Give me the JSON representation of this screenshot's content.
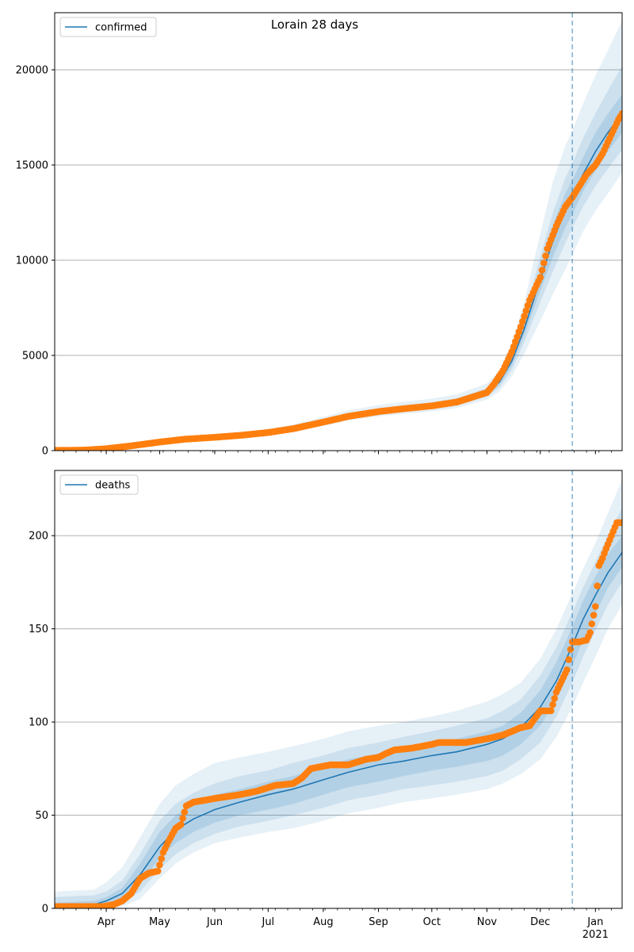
{
  "figure": {
    "title": "Lorain 28 days"
  },
  "colors": {
    "line": "#1f77b4",
    "points": "#ff7f0e",
    "band": "#1f77b4",
    "grid": "#b0b0b0"
  },
  "chart_data": [
    {
      "type": "line",
      "name": "confirmed-panel",
      "legend": "confirmed",
      "legend_position": "upper-left",
      "ylim": [
        0,
        23000
      ],
      "yticks": [
        0,
        5000,
        10000,
        15000,
        20000
      ],
      "grid": "y",
      "forecast_start": "2020-12-19",
      "series": [
        {
          "name": "confirmed",
          "style": "line",
          "x": [
            "2020-03-01",
            "2020-03-20",
            "2020-04-01",
            "2020-04-15",
            "2020-05-01",
            "2020-05-15",
            "2020-06-01",
            "2020-06-15",
            "2020-07-01",
            "2020-07-15",
            "2020-08-01",
            "2020-08-15",
            "2020-09-01",
            "2020-09-15",
            "2020-10-01",
            "2020-10-15",
            "2020-11-01",
            "2020-11-08",
            "2020-11-15",
            "2020-11-22",
            "2020-12-01",
            "2020-12-08",
            "2020-12-15",
            "2020-12-19",
            "2020-12-25",
            "2021-01-01",
            "2021-01-08",
            "2021-01-16"
          ],
          "y": [
            10,
            30,
            100,
            250,
            450,
            600,
            700,
            800,
            950,
            1150,
            1500,
            1800,
            2050,
            2200,
            2350,
            2550,
            3050,
            3600,
            4700,
            6400,
            9000,
            11000,
            12600,
            13300,
            14500,
            15700,
            16700,
            17700
          ]
        },
        {
          "name": "observed confirmed",
          "style": "points",
          "x": [
            "2020-03-01",
            "2020-03-20",
            "2020-04-01",
            "2020-04-15",
            "2020-05-01",
            "2020-05-15",
            "2020-06-01",
            "2020-06-15",
            "2020-07-01",
            "2020-07-15",
            "2020-08-01",
            "2020-08-15",
            "2020-09-01",
            "2020-09-15",
            "2020-10-01",
            "2020-10-15",
            "2020-11-01",
            "2020-11-05",
            "2020-11-10",
            "2020-11-15",
            "2020-11-20",
            "2020-11-25",
            "2020-12-01",
            "2020-12-05",
            "2020-12-10",
            "2020-12-15",
            "2020-12-19",
            "2020-12-23",
            "2020-12-27",
            "2021-01-01",
            "2021-01-05",
            "2021-01-10",
            "2021-01-14",
            "2021-01-16"
          ],
          "y": [
            10,
            30,
            100,
            250,
            450,
            600,
            700,
            800,
            950,
            1150,
            1500,
            1800,
            2050,
            2200,
            2350,
            2550,
            3050,
            3500,
            4200,
            5200,
            6500,
            7900,
            9100,
            10600,
            11800,
            12800,
            13300,
            13900,
            14500,
            15000,
            15600,
            16600,
            17400,
            17700
          ]
        }
      ],
      "bands": [
        {
          "level": "outer",
          "lower": [
            0,
            0,
            60,
            190,
            370,
            500,
            590,
            680,
            810,
            990,
            1300,
            1580,
            1800,
            1930,
            2060,
            2240,
            2680,
            3100,
            3900,
            5100,
            6800,
            8200,
            9500,
            10300,
            11500,
            12600,
            13500,
            14600
          ],
          "upper": [
            40,
            80,
            160,
            330,
            560,
            740,
            850,
            970,
            1140,
            1370,
            1770,
            2110,
            2390,
            2560,
            2730,
            2960,
            3520,
            4200,
            5600,
            7800,
            11400,
            14100,
            16000,
            16800,
            18200,
            19700,
            21000,
            22600
          ]
        },
        {
          "level": "middle",
          "lower": [
            2,
            15,
            75,
            210,
            400,
            540,
            630,
            720,
            860,
            1050,
            1380,
            1660,
            1900,
            2040,
            2180,
            2370,
            2830,
            3320,
            4230,
            5700,
            7800,
            9400,
            10900,
            11700,
            12800,
            13900,
            14800,
            15800
          ],
          "upper": [
            25,
            55,
            130,
            295,
            510,
            670,
            780,
            890,
            1050,
            1260,
            1630,
            1950,
            2210,
            2370,
            2530,
            2750,
            3280,
            3900,
            5200,
            7100,
            10200,
            12500,
            14300,
            15100,
            16400,
            17700,
            18900,
            20200
          ]
        },
        {
          "level": "inner",
          "lower": [
            5,
            22,
            86,
            228,
            422,
            565,
            655,
            750,
            895,
            1090,
            1430,
            1720,
            1970,
            2110,
            2260,
            2450,
            2930,
            3450,
            4450,
            6050,
            8400,
            10150,
            11700,
            12400,
            13600,
            14700,
            15700,
            16700
          ],
          "upper": [
            16,
            40,
            115,
            272,
            480,
            635,
            745,
            850,
            1005,
            1210,
            1570,
            1880,
            2130,
            2290,
            2440,
            2650,
            3170,
            3750,
            4950,
            6750,
            9600,
            11850,
            13500,
            14200,
            15400,
            16700,
            17700,
            18700
          ]
        }
      ]
    },
    {
      "type": "line",
      "name": "deaths-panel",
      "legend": "deaths",
      "legend_position": "upper-left",
      "ylim": [
        0,
        235
      ],
      "yticks": [
        0,
        50,
        100,
        150,
        200
      ],
      "grid": "y",
      "forecast_start": "2020-12-19",
      "xlim": [
        "2020-03-03",
        "2021-01-16"
      ],
      "xticks": [
        {
          "date": "2020-04-01",
          "label": "Apr"
        },
        {
          "date": "2020-05-01",
          "label": "May"
        },
        {
          "date": "2020-06-01",
          "label": "Jun"
        },
        {
          "date": "2020-07-01",
          "label": "Jul"
        },
        {
          "date": "2020-08-01",
          "label": "Aug"
        },
        {
          "date": "2020-09-01",
          "label": "Sep"
        },
        {
          "date": "2020-10-01",
          "label": "Oct"
        },
        {
          "date": "2020-11-01",
          "label": "Nov"
        },
        {
          "date": "2020-12-01",
          "label": "Dec"
        },
        {
          "date": "2021-01-01",
          "label": "Jan",
          "sublabel": "2021"
        }
      ],
      "series": [
        {
          "name": "deaths",
          "style": "line",
          "x": [
            "2020-03-03",
            "2020-03-25",
            "2020-04-01",
            "2020-04-10",
            "2020-04-20",
            "2020-05-01",
            "2020-05-10",
            "2020-05-20",
            "2020-06-01",
            "2020-06-15",
            "2020-07-01",
            "2020-07-15",
            "2020-08-01",
            "2020-08-15",
            "2020-09-01",
            "2020-09-15",
            "2020-10-01",
            "2020-10-15",
            "2020-11-01",
            "2020-11-10",
            "2020-11-20",
            "2020-12-01",
            "2020-12-10",
            "2020-12-19",
            "2020-12-25",
            "2021-01-01",
            "2021-01-08",
            "2021-01-16"
          ],
          "y": [
            1,
            2,
            4,
            8,
            18,
            33,
            42,
            48,
            53,
            57,
            61,
            64,
            69,
            73,
            77,
            79,
            82,
            84,
            88,
            91,
            97,
            108,
            122,
            141,
            155,
            168,
            180,
            191
          ]
        },
        {
          "name": "observed deaths",
          "style": "points",
          "x": [
            "2020-03-03",
            "2020-03-30",
            "2020-04-05",
            "2020-04-10",
            "2020-04-15",
            "2020-04-20",
            "2020-04-25",
            "2020-04-30",
            "2020-05-03",
            "2020-05-06",
            "2020-05-10",
            "2020-05-13",
            "2020-05-16",
            "2020-05-20",
            "2020-06-01",
            "2020-06-15",
            "2020-06-25",
            "2020-07-05",
            "2020-07-15",
            "2020-07-20",
            "2020-07-25",
            "2020-08-05",
            "2020-08-15",
            "2020-08-25",
            "2020-09-01",
            "2020-09-05",
            "2020-09-10",
            "2020-09-20",
            "2020-10-01",
            "2020-10-05",
            "2020-10-20",
            "2020-11-01",
            "2020-11-10",
            "2020-11-20",
            "2020-11-25",
            "2020-12-01",
            "2020-12-04",
            "2020-12-07",
            "2020-12-10",
            "2020-12-13",
            "2020-12-16",
            "2020-12-18",
            "2020-12-19",
            "2020-12-23",
            "2020-12-27",
            "2020-12-29",
            "2021-01-01",
            "2021-01-03",
            "2021-01-05",
            "2021-01-07",
            "2021-01-10",
            "2021-01-13",
            "2021-01-16"
          ],
          "y": [
            1,
            1,
            2,
            4,
            8,
            16,
            19,
            20,
            30,
            36,
            43,
            45,
            55,
            57,
            59,
            61,
            63,
            66,
            67,
            70,
            75,
            77,
            77,
            80,
            81,
            83,
            85,
            86,
            88,
            89,
            89,
            91,
            93,
            97,
            98,
            106,
            106,
            106,
            116,
            122,
            128,
            139,
            143,
            143,
            144,
            148,
            162,
            184,
            188,
            193,
            200,
            207,
            207
          ]
        }
      ],
      "bands": [
        {
          "level": "outer",
          "lower": [
            0,
            0,
            0,
            1,
            5,
            16,
            24,
            30,
            35,
            38,
            41,
            43,
            47,
            51,
            54,
            57,
            59,
            61,
            64,
            67,
            72,
            80,
            92,
            108,
            121,
            135,
            150,
            163
          ],
          "upper": [
            9,
            10,
            14,
            22,
            38,
            56,
            66,
            72,
            78,
            81,
            84,
            87,
            91,
            95,
            98,
            100,
            103,
            106,
            111,
            115,
            121,
            134,
            150,
            169,
            182,
            196,
            212,
            230
          ]
        },
        {
          "level": "middle",
          "lower": [
            0,
            0,
            1,
            3,
            9,
            21,
            29,
            35,
            40,
            44,
            47,
            50,
            54,
            58,
            61,
            64,
            66,
            68,
            71,
            74,
            80,
            89,
            103,
            121,
            135,
            149,
            163,
            175
          ],
          "upper": [
            6,
            7,
            9,
            15,
            29,
            47,
            56,
            62,
            67,
            71,
            74,
            78,
            82,
            86,
            89,
            92,
            95,
            98,
            102,
            106,
            112,
            125,
            140,
            159,
            172,
            186,
            200,
            215
          ]
        },
        {
          "level": "inner",
          "lower": [
            0,
            1,
            2,
            5,
            13,
            27,
            35,
            41,
            46,
            50,
            53,
            56,
            61,
            65,
            68,
            71,
            74,
            76,
            79,
            82,
            88,
            98,
            112,
            130,
            144,
            158,
            172,
            183
          ],
          "upper": [
            3,
            4,
            6,
            11,
            24,
            41,
            50,
            56,
            61,
            64,
            68,
            71,
            76,
            80,
            83,
            86,
            89,
            91,
            95,
            98,
            105,
            117,
            132,
            151,
            165,
            178,
            190,
            200
          ]
        }
      ]
    }
  ]
}
